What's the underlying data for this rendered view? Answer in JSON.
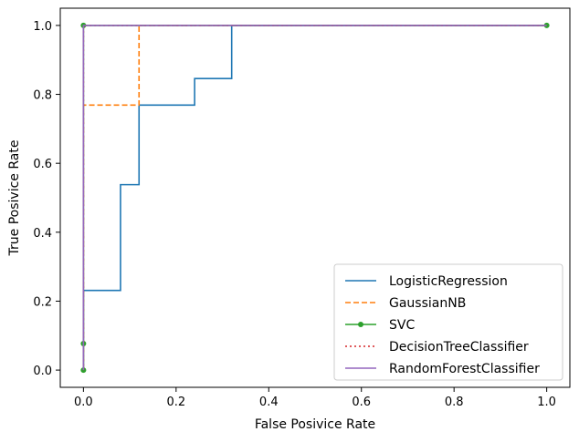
{
  "chart_data": {
    "type": "line",
    "title": "",
    "xlabel": "False Posivice Rate",
    "ylabel": "True Posivice Rate",
    "xlim": [
      -0.05,
      1.05
    ],
    "ylim": [
      -0.05,
      1.05
    ],
    "xticks": [
      0.0,
      0.2,
      0.4,
      0.6,
      0.8,
      1.0
    ],
    "yticks": [
      0.0,
      0.2,
      0.4,
      0.6,
      0.8,
      1.0
    ],
    "xtick_labels": [
      "0.0",
      "0.2",
      "0.4",
      "0.6",
      "0.8",
      "1.0"
    ],
    "ytick_labels": [
      "0.0",
      "0.2",
      "0.4",
      "0.6",
      "0.8",
      "1.0"
    ],
    "grid": false,
    "legend_position": "bottom-right",
    "series": [
      {
        "name": "LogisticRegression",
        "color": "#1f77b4",
        "style": "solid",
        "marker": "none",
        "x": [
          0.0,
          0.0,
          0.0,
          0.08,
          0.08,
          0.12,
          0.12,
          0.24,
          0.24,
          0.32,
          0.32,
          1.0
        ],
        "y": [
          0.0,
          0.077,
          0.231,
          0.231,
          0.538,
          0.538,
          0.769,
          0.769,
          0.846,
          0.846,
          1.0,
          1.0
        ]
      },
      {
        "name": "GaussianNB",
        "color": "#ff7f0e",
        "style": "dashed",
        "marker": "none",
        "x": [
          0.0,
          0.0,
          0.0,
          0.12,
          0.12,
          1.0
        ],
        "y": [
          0.0,
          0.077,
          0.769,
          0.769,
          1.0,
          1.0
        ]
      },
      {
        "name": "SVC",
        "color": "#2ca02c",
        "style": "solid",
        "marker": "circle",
        "x": [
          0.0,
          0.0,
          0.0,
          1.0
        ],
        "y": [
          0.0,
          0.077,
          1.0,
          1.0
        ]
      },
      {
        "name": "DecisionTreeClassifier",
        "color": "#d62728",
        "style": "dotted",
        "marker": "none",
        "x": [
          0.0,
          0.0,
          1.0
        ],
        "y": [
          0.0,
          1.0,
          1.0
        ]
      },
      {
        "name": "RandomForestClassifier",
        "color": "#9467bd",
        "style": "solid",
        "marker": "none",
        "x": [
          0.0,
          0.0,
          0.0,
          1.0
        ],
        "y": [
          0.0,
          0.077,
          1.0,
          1.0
        ]
      }
    ]
  }
}
